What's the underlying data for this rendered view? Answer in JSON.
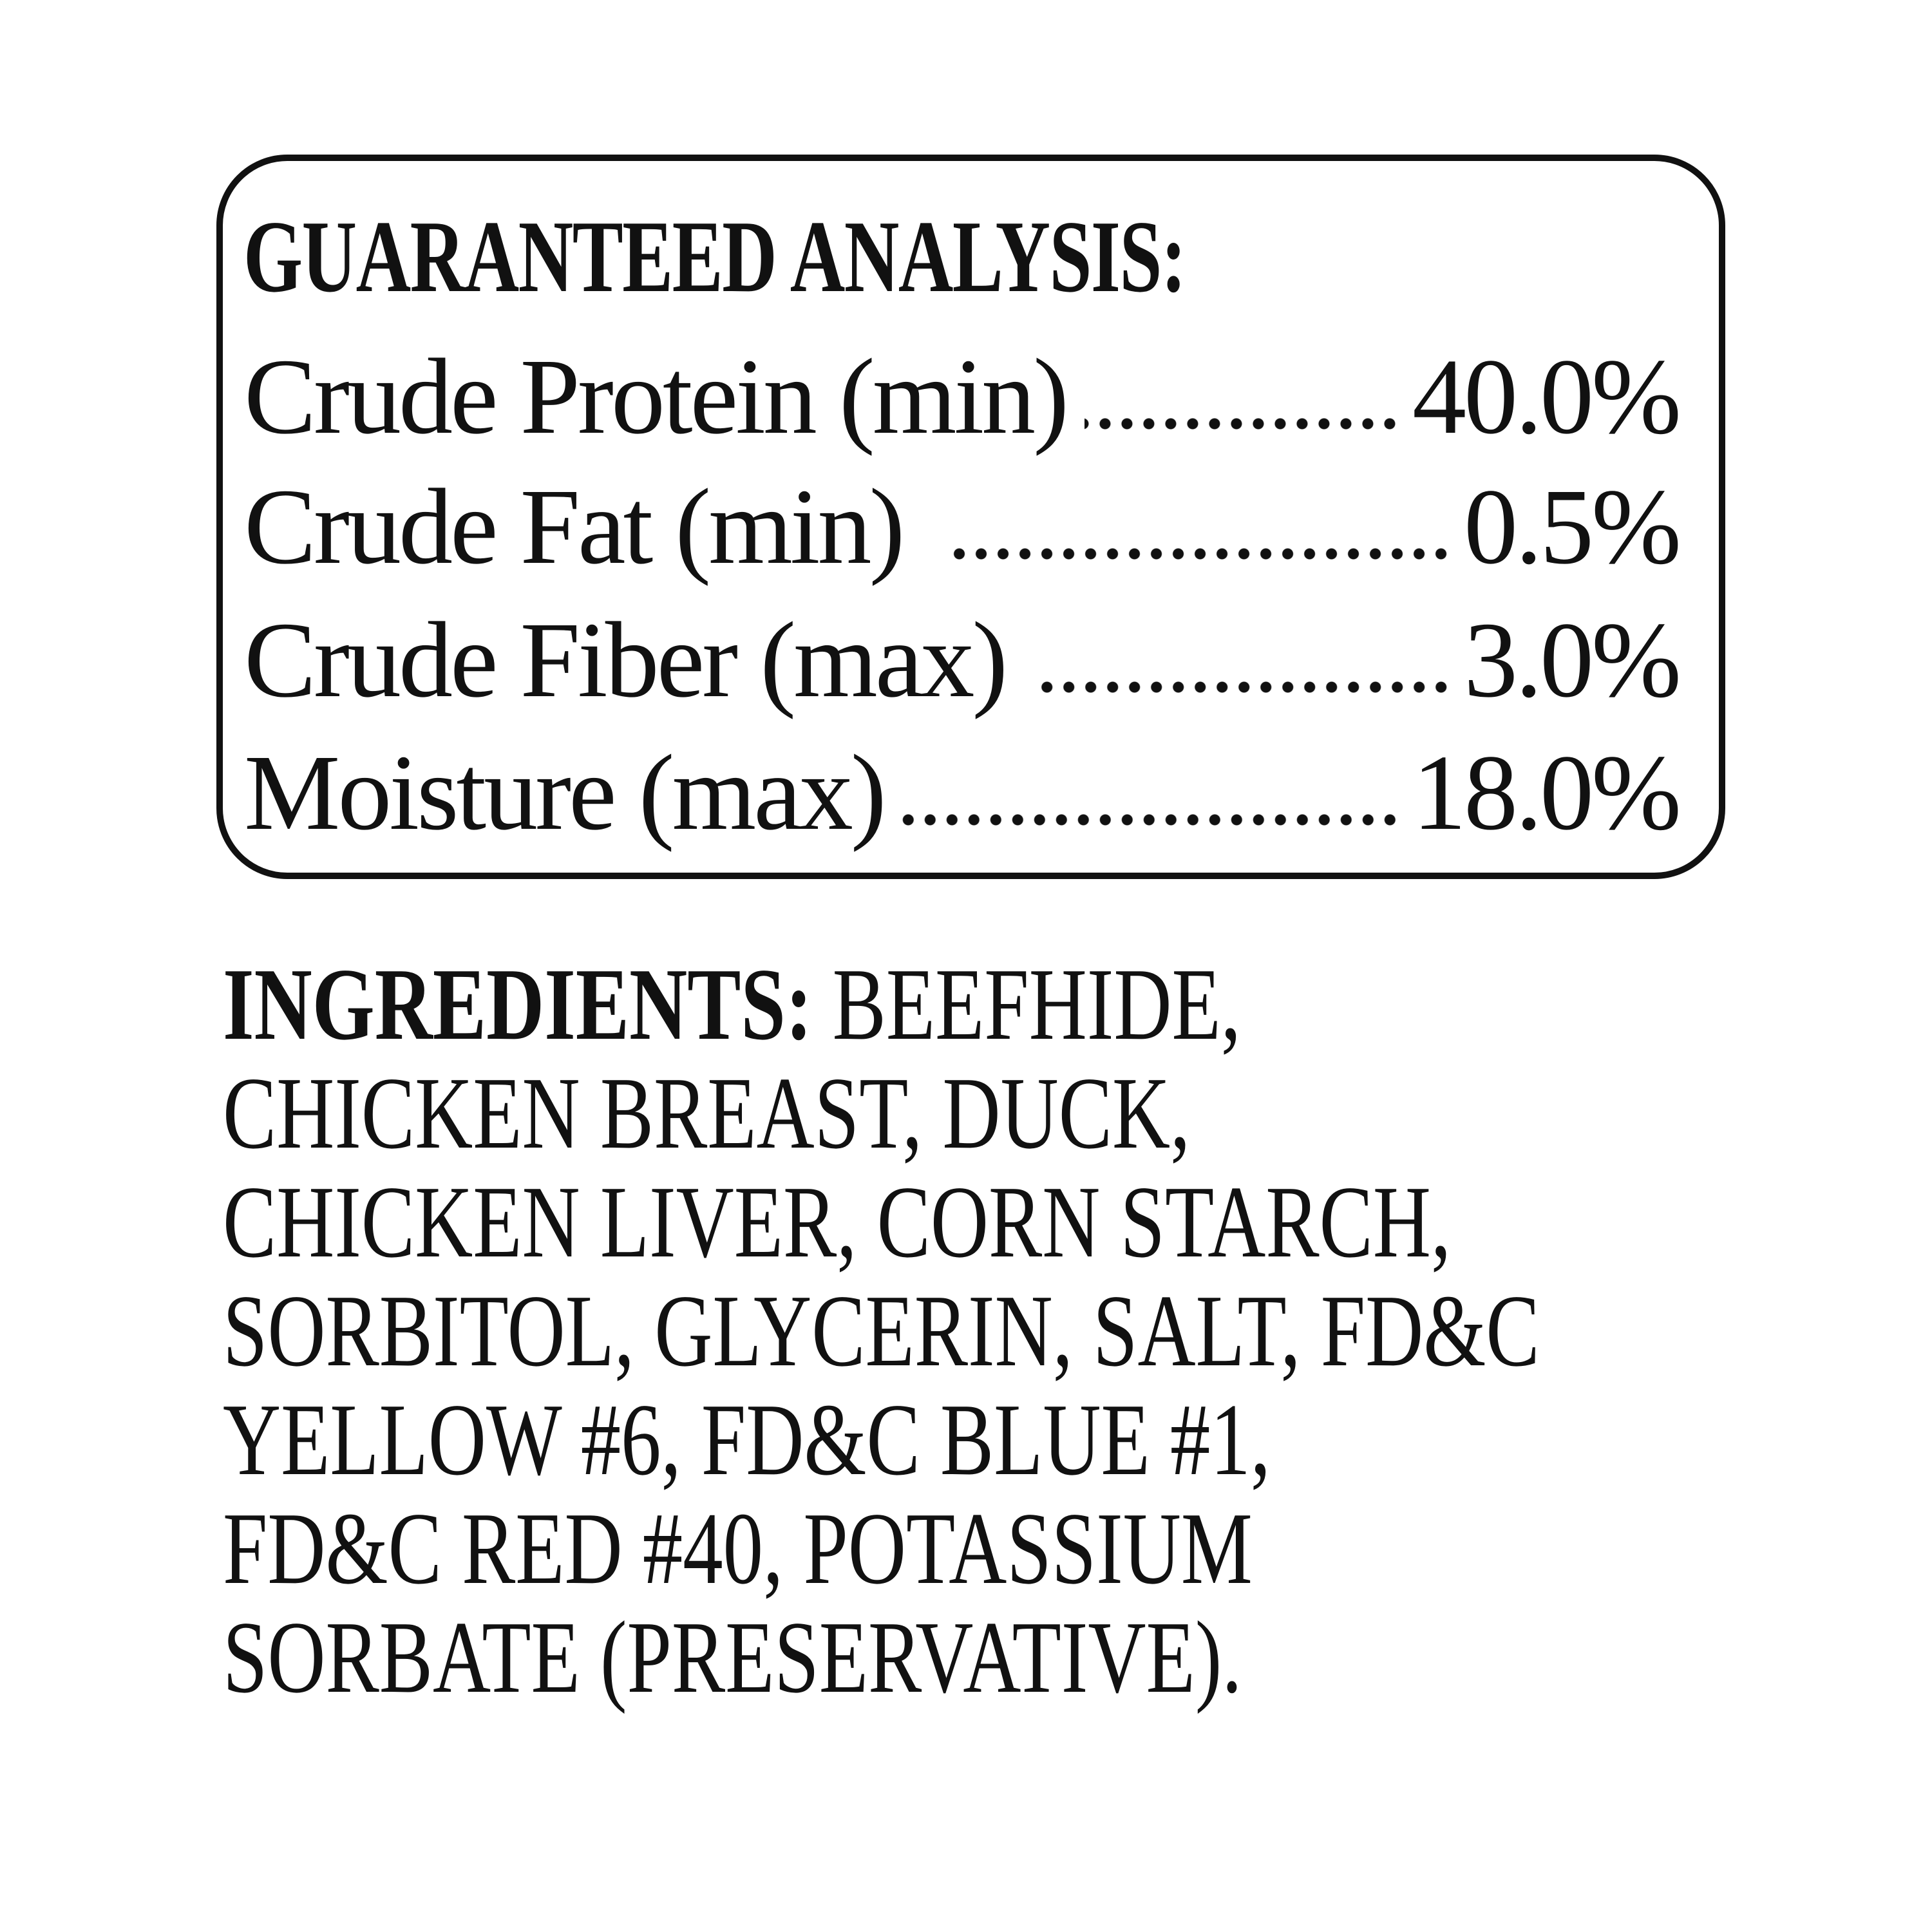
{
  "analysis": {
    "title": "GUARANTEED ANALYSIS:",
    "rows": [
      {
        "label": "Crude Protein (min)",
        "value": "40.0%"
      },
      {
        "label": "Crude Fat (min)",
        "value": "0.5%"
      },
      {
        "label": "Crude Fiber (max)",
        "value": "3.0%"
      },
      {
        "label": "Moisture (max)",
        "value": "18.0%"
      }
    ]
  },
  "ingredients": {
    "label": "INGREDIENTS:",
    "lines": [
      " BEEFHIDE,",
      "CHICKEN BREAST, DUCK,",
      "CHICKEN LIVER, CORN STARCH,",
      "SORBITOL, GLYCERIN, SALT, FD&C",
      "YELLOW #6, FD&C BLUE #1,",
      "FD&C RED #40, POTASSIUM",
      "SORBATE  (PRESERVATIVE)."
    ]
  }
}
